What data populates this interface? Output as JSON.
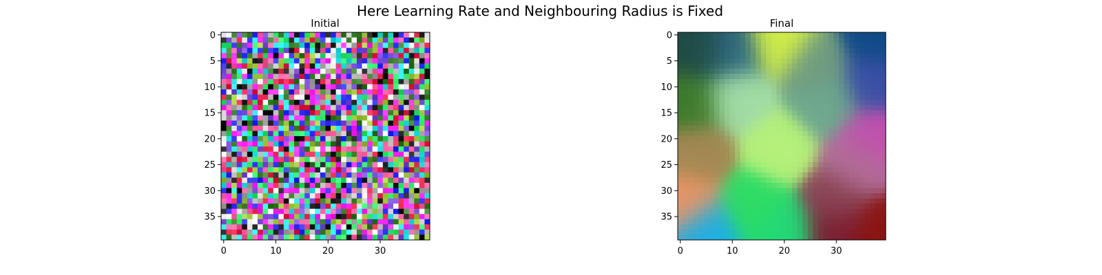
{
  "suptitle": "Here Learning Rate and Neighbouring Radius is Fixed",
  "chart_data": [
    {
      "type": "heatmap",
      "title": "Initial",
      "grid_size": [
        40,
        40
      ],
      "pattern": "random-noise",
      "description_colors": [
        "#e8244c",
        "#2ee86b",
        "#7b4bd9",
        "#27e1e1",
        "#9fc73d",
        "#1a1a1a",
        "#ff5fa0",
        "#f0f0f0",
        "#3b7f2a",
        "#3030ff",
        "#a8a8a8",
        "#ff2dff"
      ],
      "xticks": [
        0,
        10,
        20,
        30
      ],
      "yticks": [
        0,
        5,
        10,
        15,
        20,
        25,
        30,
        35
      ],
      "xlim": [
        -0.5,
        39.5
      ],
      "ylim": [
        39.5,
        -0.5
      ],
      "grid": false
    },
    {
      "type": "heatmap",
      "title": "Final",
      "grid_size": [
        40,
        40
      ],
      "pattern": "smooth-color-regions",
      "regions": [
        {
          "center": [
            4,
            3
          ],
          "color": "#1f4a44"
        },
        {
          "center": [
            10,
            3
          ],
          "color": "#2e6a82"
        },
        {
          "center": [
            19,
            1
          ],
          "color": "#d2ee48"
        },
        {
          "center": [
            26,
            6
          ],
          "color": "#6f9a80"
        },
        {
          "center": [
            38,
            1
          ],
          "color": "#0f4a86"
        },
        {
          "center": [
            37,
            9
          ],
          "color": "#3b4fa6"
        },
        {
          "center": [
            2,
            13
          ],
          "color": "#3d7a2c"
        },
        {
          "center": [
            11,
            12
          ],
          "color": "#a2dca6"
        },
        {
          "center": [
            28,
            13
          ],
          "color": "#6ea88e"
        },
        {
          "center": [
            37,
            20
          ],
          "color": "#c24fae"
        },
        {
          "center": [
            3,
            23
          ],
          "color": "#a38852"
        },
        {
          "center": [
            19,
            22
          ],
          "color": "#b4f07a"
        },
        {
          "center": [
            34,
            25
          ],
          "color": "#b07096"
        },
        {
          "center": [
            1,
            32
          ],
          "color": "#ec9464"
        },
        {
          "center": [
            14,
            33
          ],
          "color": "#2edc64"
        },
        {
          "center": [
            30,
            32
          ],
          "color": "#8a4656"
        },
        {
          "center": [
            5,
            38
          ],
          "color": "#1aaee6"
        },
        {
          "center": [
            20,
            38
          ],
          "color": "#22d878"
        },
        {
          "center": [
            30,
            38
          ],
          "color": "#7a1a30"
        },
        {
          "center": [
            38,
            38
          ],
          "color": "#8c1410"
        }
      ],
      "xticks": [
        0,
        10,
        20,
        30
      ],
      "yticks": [
        0,
        5,
        10,
        15,
        20,
        25,
        30,
        35
      ],
      "xlim": [
        -0.5,
        39.5
      ],
      "ylim": [
        39.5,
        -0.5
      ],
      "grid": false
    }
  ]
}
